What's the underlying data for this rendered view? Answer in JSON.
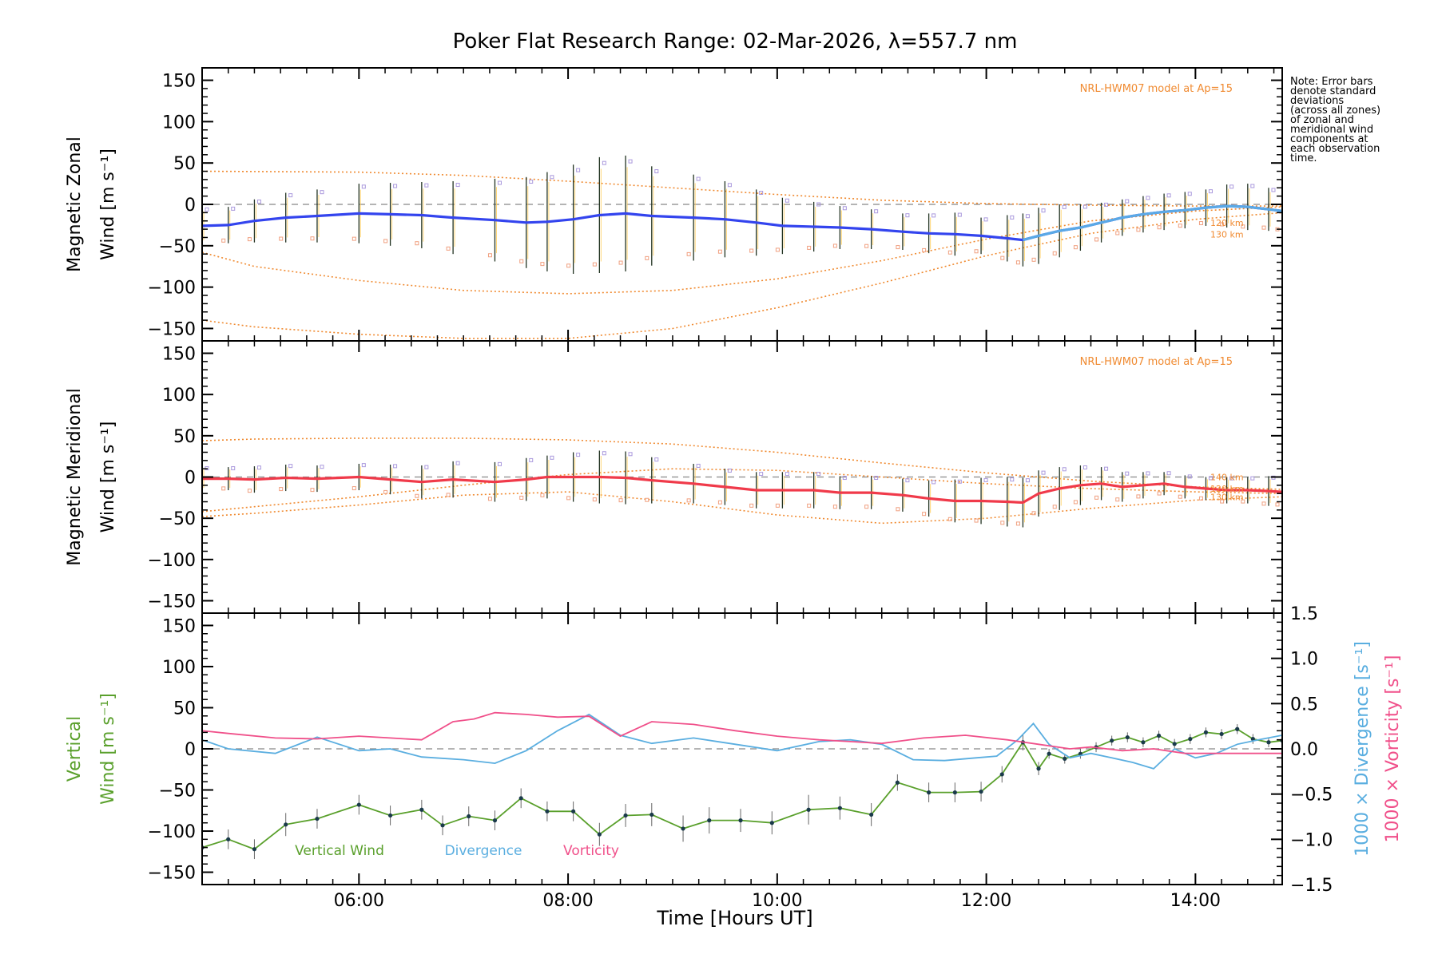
{
  "chart_data": {
    "type": "line",
    "title": "Poker Flat Research Range: 02-Mar-2026, λ=557.7 nm",
    "xlabel": "Time [Hours UT]",
    "xlim": [
      4.5,
      14.83
    ],
    "xticks": [
      6,
      8,
      10,
      12,
      14
    ],
    "xtick_labels": [
      "06:00",
      "08:00",
      "10:00",
      "12:00",
      "14:00"
    ],
    "note_lines": [
      "Note: Error bars",
      "denote standard",
      "deviations",
      "(across all zones)",
      "of zonal and",
      "meridional wind",
      "components at",
      "each observation",
      "time."
    ],
    "colors": {
      "zonal": "#3344ee",
      "zonal_fine": "#5aa9e6",
      "meridional": "#f03a4a",
      "vertical": "#5aa02c",
      "divergence": "#5aaee0",
      "vorticity": "#f0508a",
      "model": "#f08a30",
      "zone_points": "#aa99dd",
      "errbar": "#223322"
    },
    "panels": [
      {
        "id": "zonal",
        "ylabel_line1": "Magnetic Zonal",
        "ylabel_line2": "Wind [m s⁻¹]",
        "ylim": [
          -165,
          165
        ],
        "yticks": [
          150,
          100,
          50,
          0,
          -50,
          -100,
          -150
        ],
        "ytick_labels": [
          "150",
          "100",
          "50",
          "0",
          "−50",
          "−100",
          "−150"
        ],
        "model_label": "NRL-HWM07 model at Ap=15",
        "model_altitude_labels": [
          "120 km",
          "130 km"
        ],
        "model_altitude_values": [
          -22,
          -36
        ],
        "model_curves": [
          {
            "x": [
              4.5,
              6,
              7,
              8,
              9,
              10,
              11,
              12,
              13,
              14,
              14.83
            ],
            "y": [
              40,
              39,
              35,
              28,
              20,
              12,
              5,
              1,
              -1,
              -2,
              -2
            ]
          },
          {
            "x": [
              4.5,
              5,
              6,
              7,
              8,
              9,
              10,
              11,
              12,
              13,
              14,
              14.83
            ],
            "y": [
              -58,
              -75,
              -92,
              -104,
              -108,
              -104,
              -90,
              -68,
              -42,
              -20,
              -8,
              -3
            ]
          },
          {
            "x": [
              4.5,
              5,
              6,
              7,
              8,
              9,
              10,
              11,
              12,
              13,
              14,
              14.83
            ],
            "y": [
              -140,
              -148,
              -157,
              -162,
              -162,
              -150,
              -125,
              -95,
              -62,
              -35,
              -18,
              -10
            ]
          }
        ],
        "series": [
          {
            "name": "Magnetic Zonal Wind",
            "x": [
              4.5,
              4.75,
              5,
              5.3,
              5.6,
              6,
              6.3,
              6.6,
              6.9,
              7.3,
              7.6,
              7.8,
              8.05,
              8.3,
              8.55,
              8.8,
              9.2,
              9.5,
              9.8,
              10.05,
              10.35,
              10.6,
              10.9,
              11.2,
              11.45,
              11.7,
              11.95,
              12.2,
              12.35,
              12.5,
              12.7,
              12.9,
              13.1,
              13.3,
              13.5,
              13.7,
              13.9,
              14.1,
              14.3,
              14.5,
              14.7,
              14.83
            ],
            "y": [
              -26,
              -25,
              -20,
              -16,
              -14,
              -11,
              -12,
              -13,
              -16,
              -19,
              -22,
              -21,
              -18,
              -13,
              -11,
              -14,
              -16,
              -18,
              -22,
              -26,
              -27,
              -28,
              -30,
              -33,
              -35,
              -36,
              -38,
              -41,
              -43,
              -38,
              -32,
              -28,
              -22,
              -16,
              -12,
              -9,
              -7,
              -4,
              -2,
              -3,
              -6,
              -8
            ],
            "err": [
              22,
              22,
              26,
              30,
              32,
              36,
              38,
              40,
              44,
              50,
              55,
              60,
              66,
              70,
              70,
              60,
              52,
              46,
              40,
              34,
              30,
              26,
              24,
              22,
              24,
              26,
              22,
              28,
              32,
              34,
              32,
              28,
              24,
              22,
              22,
              22,
              22,
              22,
              26,
              28,
              26,
              26
            ]
          }
        ]
      },
      {
        "id": "meridional",
        "ylabel_line1": "Magnetic Meridional",
        "ylabel_line2": "Wind [m s⁻¹]",
        "ylim": [
          -165,
          165
        ],
        "yticks": [
          150,
          100,
          50,
          0,
          -50,
          -100,
          -150
        ],
        "ytick_labels": [
          "150",
          "100",
          "50",
          "0",
          "−50",
          "−100",
          "−150"
        ],
        "model_label": "NRL-HWM07 model at Ap=15",
        "model_altitude_labels": [
          "140 km",
          "120 km",
          "130 km"
        ],
        "model_altitude_values": [
          0,
          -14,
          -24
        ],
        "model_curves": [
          {
            "x": [
              4.5,
              5,
              6,
              7,
              8,
              9,
              10,
              11,
              12,
              13,
              14,
              14.83
            ],
            "y": [
              44,
              46,
              47,
              47,
              45,
              40,
              30,
              17,
              5,
              -5,
              -12,
              -15
            ]
          },
          {
            "x": [
              4.5,
              5,
              6,
              7,
              8,
              9,
              10,
              11,
              12,
              13,
              14,
              14.83
            ],
            "y": [
              -42,
              -36,
              -24,
              -10,
              3,
              10,
              8,
              0,
              -8,
              -14,
              -18,
              -20
            ]
          },
          {
            "x": [
              4.5,
              5,
              6,
              7,
              8,
              9,
              10,
              11,
              12,
              13,
              14,
              14.83
            ],
            "y": [
              -48,
              -44,
              -34,
              -22,
              -18,
              -30,
              -46,
              -56,
              -50,
              -38,
              -28,
              -24
            ]
          }
        ],
        "series": [
          {
            "name": "Magnetic Meridional Wind",
            "x": [
              4.5,
              4.75,
              5,
              5.3,
              5.6,
              6,
              6.3,
              6.6,
              6.9,
              7.3,
              7.6,
              7.8,
              8.05,
              8.3,
              8.55,
              8.8,
              9.2,
              9.5,
              9.8,
              10.05,
              10.35,
              10.6,
              10.9,
              11.2,
              11.45,
              11.7,
              11.95,
              12.2,
              12.35,
              12.5,
              12.7,
              12.9,
              13.1,
              13.3,
              13.5,
              13.7,
              13.9,
              14.1,
              14.3,
              14.5,
              14.7,
              14.83
            ],
            "y": [
              -2,
              -2,
              -3,
              -1,
              -2,
              0,
              -3,
              -6,
              -3,
              -6,
              -3,
              0,
              0,
              0,
              -1,
              -4,
              -8,
              -12,
              -16,
              -16,
              -16,
              -19,
              -19,
              -22,
              -26,
              -29,
              -29,
              -30,
              -31,
              -20,
              -14,
              -10,
              -8,
              -12,
              -10,
              -8,
              -12,
              -14,
              -16,
              -16,
              -17,
              -18
            ],
            "err": [
              14,
              14,
              16,
              16,
              16,
              16,
              18,
              20,
              22,
              24,
              26,
              26,
              30,
              32,
              32,
              28,
              24,
              22,
              22,
              22,
              22,
              20,
              20,
              20,
              22,
              26,
              28,
              30,
              30,
              28,
              26,
              24,
              20,
              18,
              16,
              14,
              14,
              14,
              16,
              16,
              18,
              18
            ]
          }
        ]
      },
      {
        "id": "vertical",
        "ylabel_line1": "Vertical",
        "ylabel_line2": "Wind [m s⁻¹]",
        "ylim": [
          -165,
          165
        ],
        "yticks": [
          150,
          100,
          50,
          0,
          -50,
          -100,
          -150
        ],
        "ytick_labels": [
          "150",
          "100",
          "50",
          "0",
          "−50",
          "−100",
          "−150"
        ],
        "y2label_div": "1000 × Divergence [s⁻¹]",
        "y2label_vor": "1000 × Vorticity [s⁻¹]",
        "y2lim": [
          -1.5,
          1.5
        ],
        "y2ticks": [
          1.5,
          1.0,
          0.5,
          0.0,
          -0.5,
          -1.0,
          -1.5
        ],
        "y2tick_labels": [
          "1.5",
          "1.0",
          "0.5",
          "0.0",
          "−0.5",
          "−1.0",
          "−1.5"
        ],
        "legend": [
          "Vertical Wind",
          "Divergence",
          "Vorticity"
        ],
        "series": [
          {
            "name": "Vertical Wind",
            "axis": "left",
            "x": [
              4.5,
              4.75,
              5,
              5.3,
              5.6,
              6,
              6.3,
              6.6,
              6.8,
              7.05,
              7.3,
              7.55,
              7.8,
              8.05,
              8.3,
              8.55,
              8.8,
              9.1,
              9.35,
              9.65,
              9.95,
              10.3,
              10.6,
              10.9,
              11.15,
              11.45,
              11.7,
              11.95,
              12.15,
              12.35,
              12.5,
              12.6,
              12.75,
              12.9,
              13.05,
              13.2,
              13.35,
              13.5,
              13.65,
              13.8,
              13.95,
              14.1,
              14.25,
              14.4,
              14.55,
              14.7,
              14.83
            ],
            "y": [
              -120,
              -110,
              -122,
              -92,
              -85,
              -68,
              -81,
              -74,
              -93,
              -82,
              -87,
              -60,
              -76,
              -76,
              -104,
              -81,
              -80,
              -97,
              -87,
              -87,
              -90,
              -74,
              -72,
              -80,
              -41,
              -53,
              -53,
              -52,
              -31,
              8,
              -24,
              -6,
              -12,
              -6,
              2,
              10,
              14,
              8,
              16,
              6,
              12,
              20,
              18,
              24,
              12,
              8,
              10
            ],
            "err": [
              12,
              12,
              12,
              14,
              12,
              12,
              12,
              12,
              12,
              12,
              12,
              12,
              12,
              12,
              14,
              14,
              14,
              16,
              16,
              14,
              14,
              18,
              14,
              14,
              10,
              12,
              12,
              12,
              10,
              10,
              8,
              6,
              6,
              6,
              6,
              6,
              6,
              6,
              6,
              6,
              6,
              6,
              6,
              6,
              6,
              6,
              6
            ]
          },
          {
            "name": "Divergence",
            "axis": "right",
            "x": [
              4.5,
              4.75,
              5.2,
              5.6,
              6.0,
              6.3,
              6.6,
              7.0,
              7.3,
              7.6,
              7.9,
              8.2,
              8.5,
              8.8,
              9.2,
              9.6,
              10.0,
              10.4,
              10.7,
              11.0,
              11.3,
              11.6,
              11.9,
              12.1,
              12.3,
              12.45,
              12.6,
              12.8,
              13.0,
              13.2,
              13.4,
              13.6,
              13.8,
              14.0,
              14.2,
              14.4,
              14.6,
              14.83
            ],
            "y": [
              0.1,
              0.0,
              -0.05,
              0.13,
              -0.02,
              0.0,
              -0.09,
              -0.12,
              -0.16,
              -0.02,
              0.2,
              0.38,
              0.15,
              0.06,
              0.12,
              0.05,
              -0.02,
              0.08,
              0.1,
              0.05,
              -0.12,
              -0.13,
              -0.1,
              -0.08,
              0.1,
              0.28,
              0.05,
              -0.1,
              -0.05,
              -0.1,
              -0.15,
              -0.22,
              0.0,
              -0.1,
              -0.05,
              0.05,
              0.1,
              0.15
            ]
          },
          {
            "name": "Vorticity",
            "axis": "right",
            "x": [
              4.5,
              4.75,
              5.2,
              5.6,
              6.0,
              6.3,
              6.6,
              6.9,
              7.1,
              7.3,
              7.6,
              7.9,
              8.2,
              8.5,
              8.8,
              9.2,
              9.6,
              10.0,
              10.4,
              10.7,
              11.0,
              11.4,
              11.8,
              12.2,
              12.5,
              12.8,
              13.0,
              13.3,
              13.6,
              13.9,
              14.2,
              14.5,
              14.83
            ],
            "y": [
              0.2,
              0.17,
              0.12,
              0.11,
              0.14,
              0.12,
              0.1,
              0.3,
              0.33,
              0.4,
              0.38,
              0.35,
              0.36,
              0.14,
              0.3,
              0.27,
              0.2,
              0.14,
              0.1,
              0.08,
              0.06,
              0.12,
              0.15,
              0.1,
              0.05,
              0.0,
              0.02,
              -0.02,
              0.0,
              -0.05,
              -0.05,
              -0.05,
              -0.05
            ]
          }
        ]
      }
    ]
  }
}
